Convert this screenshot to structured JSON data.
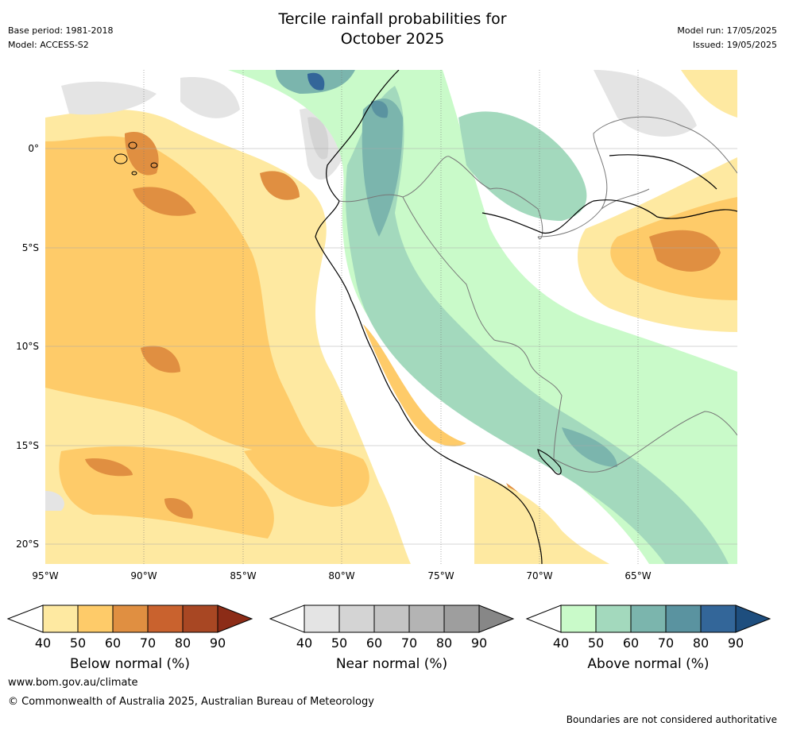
{
  "header": {
    "title_line1": "Tercile rainfall probabilities for",
    "title_line2": "October 2025",
    "base_period": "Base period: 1981-2018",
    "model": "Model: ACCESS-S2",
    "model_run": "Model run: 17/05/2025",
    "issued": "Issued: 19/05/2025"
  },
  "map": {
    "lat_labels": [
      "0°",
      "5°S",
      "10°S",
      "15°S",
      "20°S"
    ],
    "lon_labels": [
      "95°W",
      "90°W",
      "85°W",
      "80°W",
      "75°W",
      "70°W",
      "65°W"
    ]
  },
  "colorbars": [
    {
      "label": "Below normal (%)",
      "ticks": [
        "40",
        "50",
        "60",
        "70",
        "80",
        "90"
      ],
      "colors": [
        "#fee9a1",
        "#fecb69",
        "#e08f41",
        "#c9622e",
        "#a84723",
        "#8c2c17"
      ]
    },
    {
      "label": "Near normal (%)",
      "ticks": [
        "40",
        "50",
        "60",
        "70",
        "80",
        "90"
      ],
      "colors": [
        "#e4e4e4",
        "#d4d4d4",
        "#c4c4c4",
        "#b4b4b4",
        "#9e9e9e",
        "#878787"
      ]
    },
    {
      "label": "Above normal (%)",
      "ticks": [
        "40",
        "50",
        "60",
        "70",
        "80",
        "90"
      ],
      "colors": [
        "#c9fac9",
        "#a3d9bd",
        "#7bb5ad",
        "#5a93a0",
        "#336699",
        "#1e4e7e"
      ]
    }
  ],
  "footer": {
    "website": "www.bom.gov.au/climate",
    "copyright": "© Commonwealth of Australia 2025, Australian Bureau of Meteorology",
    "disclaimer": "Boundaries are not considered authoritative"
  }
}
